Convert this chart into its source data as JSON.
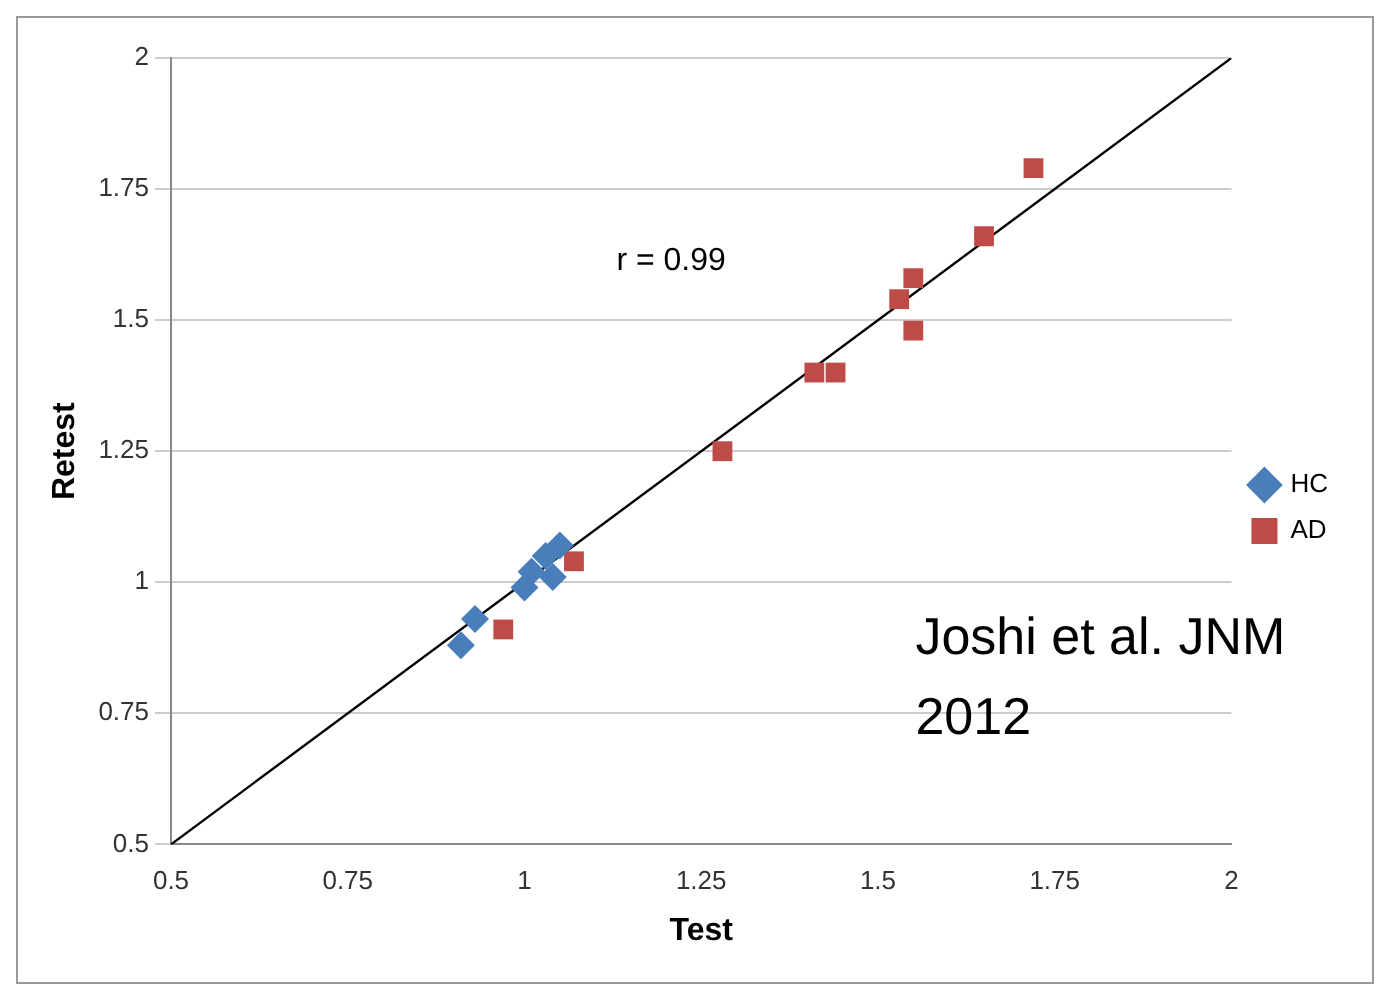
{
  "chart_data": {
    "type": "scatter",
    "xlabel": "Test",
    "ylabel": "Retest",
    "xlim": [
      0.5,
      2
    ],
    "ylim": [
      0.5,
      2
    ],
    "xticks": [
      0.5,
      0.75,
      1,
      1.25,
      1.5,
      1.75,
      2
    ],
    "yticks": [
      0.5,
      0.75,
      1,
      1.25,
      1.5,
      1.75,
      2
    ],
    "grid": "y",
    "legend": "right",
    "series": [
      {
        "name": "HC",
        "color": "#4a7ebb",
        "marker": "diamond",
        "x": [
          0.91,
          0.93,
          1.0,
          1.01,
          1.03,
          1.05,
          1.04
        ],
        "values": [
          0.88,
          0.93,
          0.99,
          1.02,
          1.05,
          1.07,
          1.01
        ]
      },
      {
        "name": "AD",
        "color": "#be4b48",
        "marker": "square",
        "x": [
          0.97,
          1.07,
          1.28,
          1.41,
          1.44,
          1.53,
          1.55,
          1.55,
          1.65,
          1.72
        ],
        "values": [
          0.91,
          1.04,
          1.25,
          1.4,
          1.4,
          1.54,
          1.58,
          1.48,
          1.66,
          1.79
        ]
      },
      {
        "type": "line",
        "color": "#000000",
        "marker": "none",
        "x": [
          0.5,
          2
        ],
        "values": [
          0.5,
          2
        ]
      }
    ],
    "annotations": [
      "r = 0.99",
      "Joshi et al. JNM 2012"
    ]
  }
}
